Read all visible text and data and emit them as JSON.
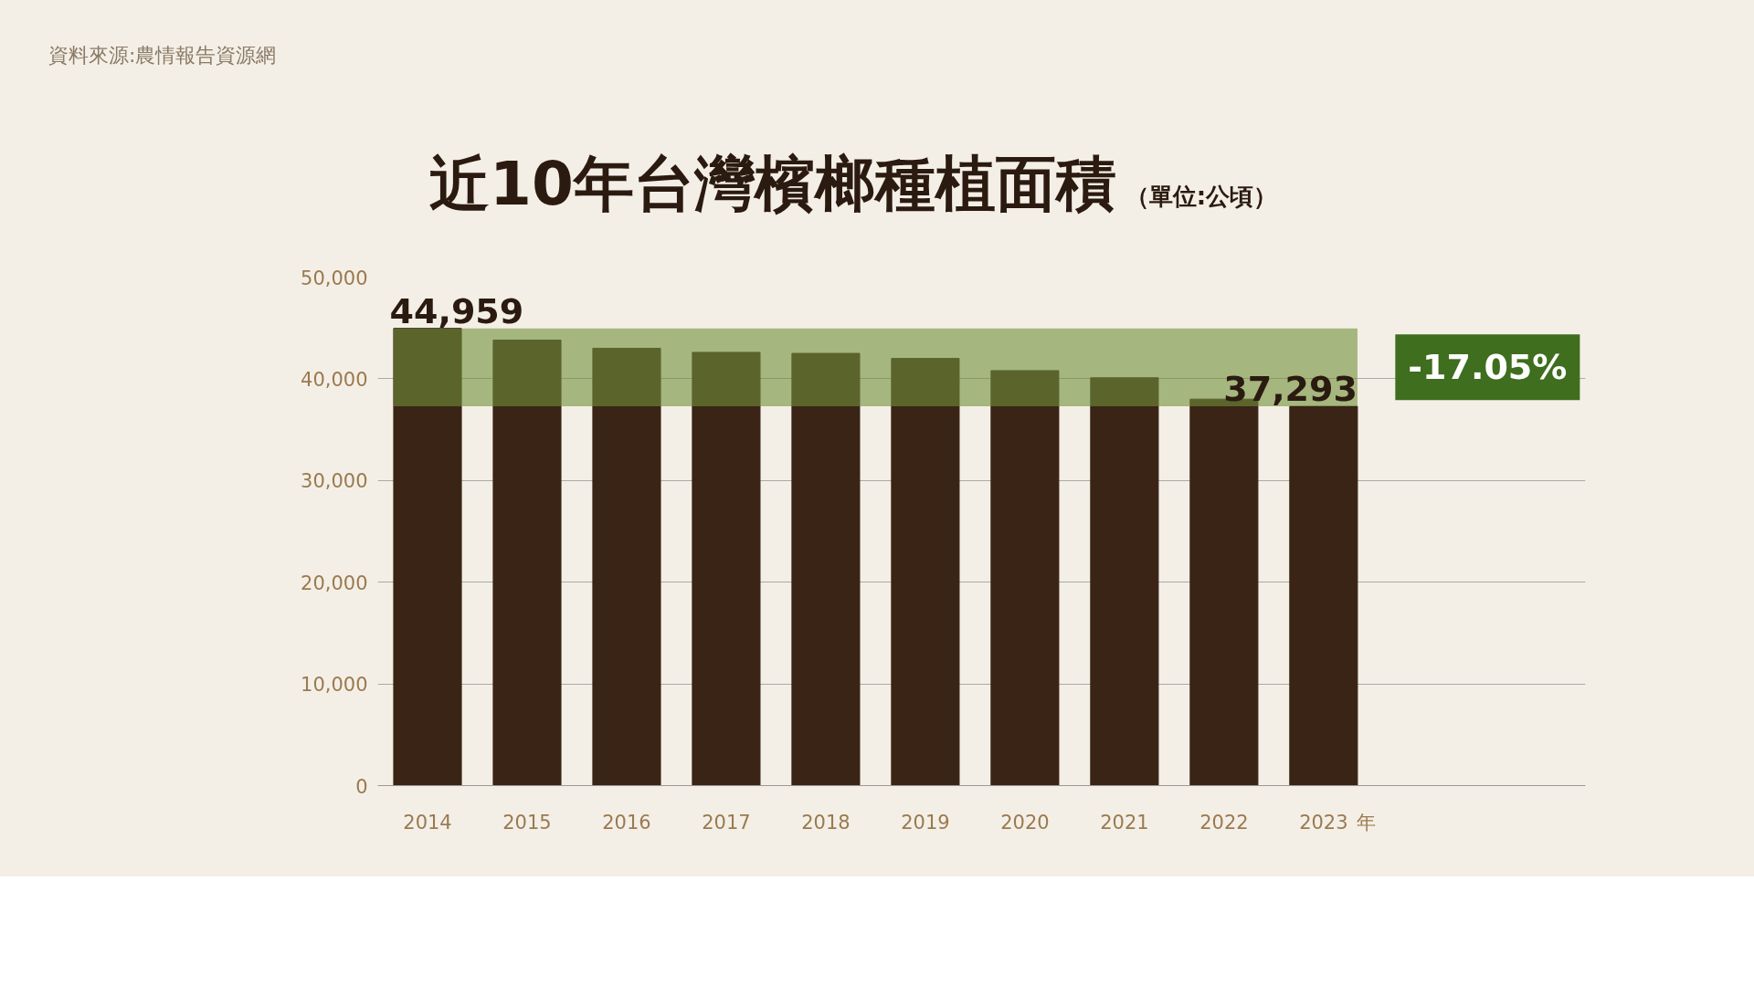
{
  "chart_data": {
    "type": "bar",
    "title": "近10年台灣檳榔種植面積",
    "subtitle": "（單位:公頃）",
    "xlabel": "年",
    "categories": [
      "2014",
      "2015",
      "2016",
      "2017",
      "2018",
      "2019",
      "2020",
      "2021",
      "2022",
      "2023"
    ],
    "values": [
      44959,
      43800,
      43000,
      42600,
      42500,
      42000,
      40800,
      40100,
      38000,
      37293
    ],
    "value_labels": [
      "44,959",
      null,
      null,
      null,
      null,
      null,
      null,
      null,
      null,
      "37,293"
    ],
    "color": "#3a2416",
    "ylim": [
      0,
      50000
    ],
    "yticks": [
      {
        "value": 0,
        "label": "0"
      },
      {
        "value": 10000,
        "label": "10,000"
      },
      {
        "value": 20000,
        "label": "20,000"
      },
      {
        "value": 30000,
        "label": "30,000"
      },
      {
        "value": 40000,
        "label": "40,000"
      },
      {
        "value": 50000,
        "label": "50,000"
      }
    ],
    "bands": [
      {
        "axis": "y",
        "from": 37293,
        "to": 44959,
        "label": "-17.05%",
        "color": "#6f8f3a"
      }
    ],
    "grid": "y",
    "annotations": [
      "資料來源:農情報告資源網"
    ]
  }
}
